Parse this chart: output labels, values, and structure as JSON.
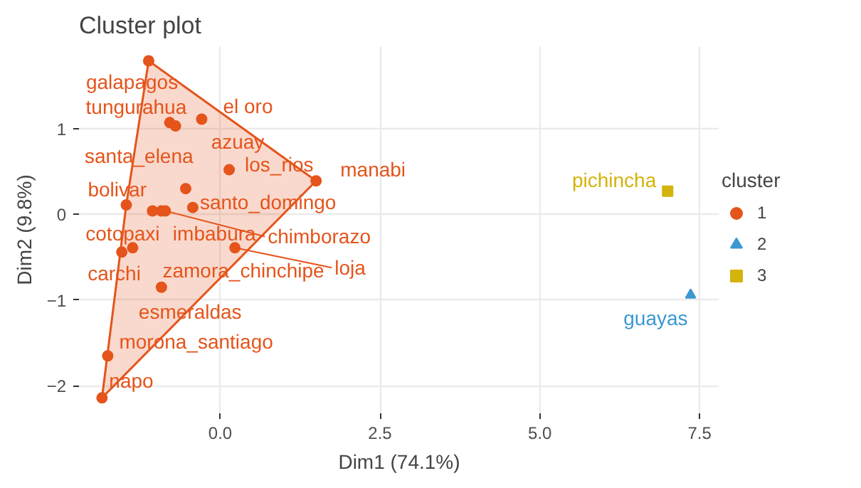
{
  "chart_data": {
    "type": "scatter",
    "title": "Cluster plot",
    "xlabel": "Dim1 (74.1%)",
    "ylabel": "Dim2 (9.8%)",
    "legend_title": "cluster",
    "legend": "right",
    "grid": true,
    "xlim": [
      -2.21,
      7.81
    ],
    "ylim": [
      -2.32,
      1.96
    ],
    "xticks": [
      {
        "value": 0,
        "label": "0.0"
      },
      {
        "value": 2.5,
        "label": "2.5"
      },
      {
        "value": 5,
        "label": "5.0"
      },
      {
        "value": 7.5,
        "label": "7.5"
      }
    ],
    "yticks": [
      -2,
      -1,
      0,
      1
    ],
    "series": [
      {
        "name": "1",
        "color": "#e5541b",
        "marker": "circle",
        "x": [
          -1.12,
          -0.79,
          -0.29,
          -0.7,
          -0.54,
          0.14,
          1.5,
          -0.43,
          -1.47,
          -1.06,
          -0.92,
          -0.86,
          -1.54,
          -1.37,
          0.23,
          -0.92,
          -1.76,
          -1.85
        ],
        "values": [
          1.79,
          1.07,
          1.11,
          1.03,
          0.3,
          0.52,
          0.39,
          0.08,
          0.11,
          0.04,
          0.04,
          0.04,
          -0.44,
          -0.39,
          -0.39,
          -0.85,
          -1.65,
          -2.14
        ],
        "value_labels": [
          "galapagos",
          "tungurahua",
          "el oro",
          "azuay",
          "santa_elena",
          "los_rios",
          "manabi",
          "santo_domingo",
          "bolivar",
          "cotopaxi",
          "imbabura",
          "chimborazo",
          "carchi",
          "zamora_chinchipe",
          "loja",
          "esmeraldas",
          "morona_santiago",
          "napo"
        ]
      },
      {
        "name": "2",
        "color": "#3a98d2",
        "marker": "triangle",
        "x": [
          7.36
        ],
        "values": [
          -0.94
        ],
        "value_labels": [
          "guayas"
        ]
      },
      {
        "name": "3",
        "color": "#d4b30c",
        "marker": "square",
        "x": [
          7.0
        ],
        "values": [
          0.27
        ],
        "value_labels": [
          "pichincha"
        ]
      }
    ]
  }
}
